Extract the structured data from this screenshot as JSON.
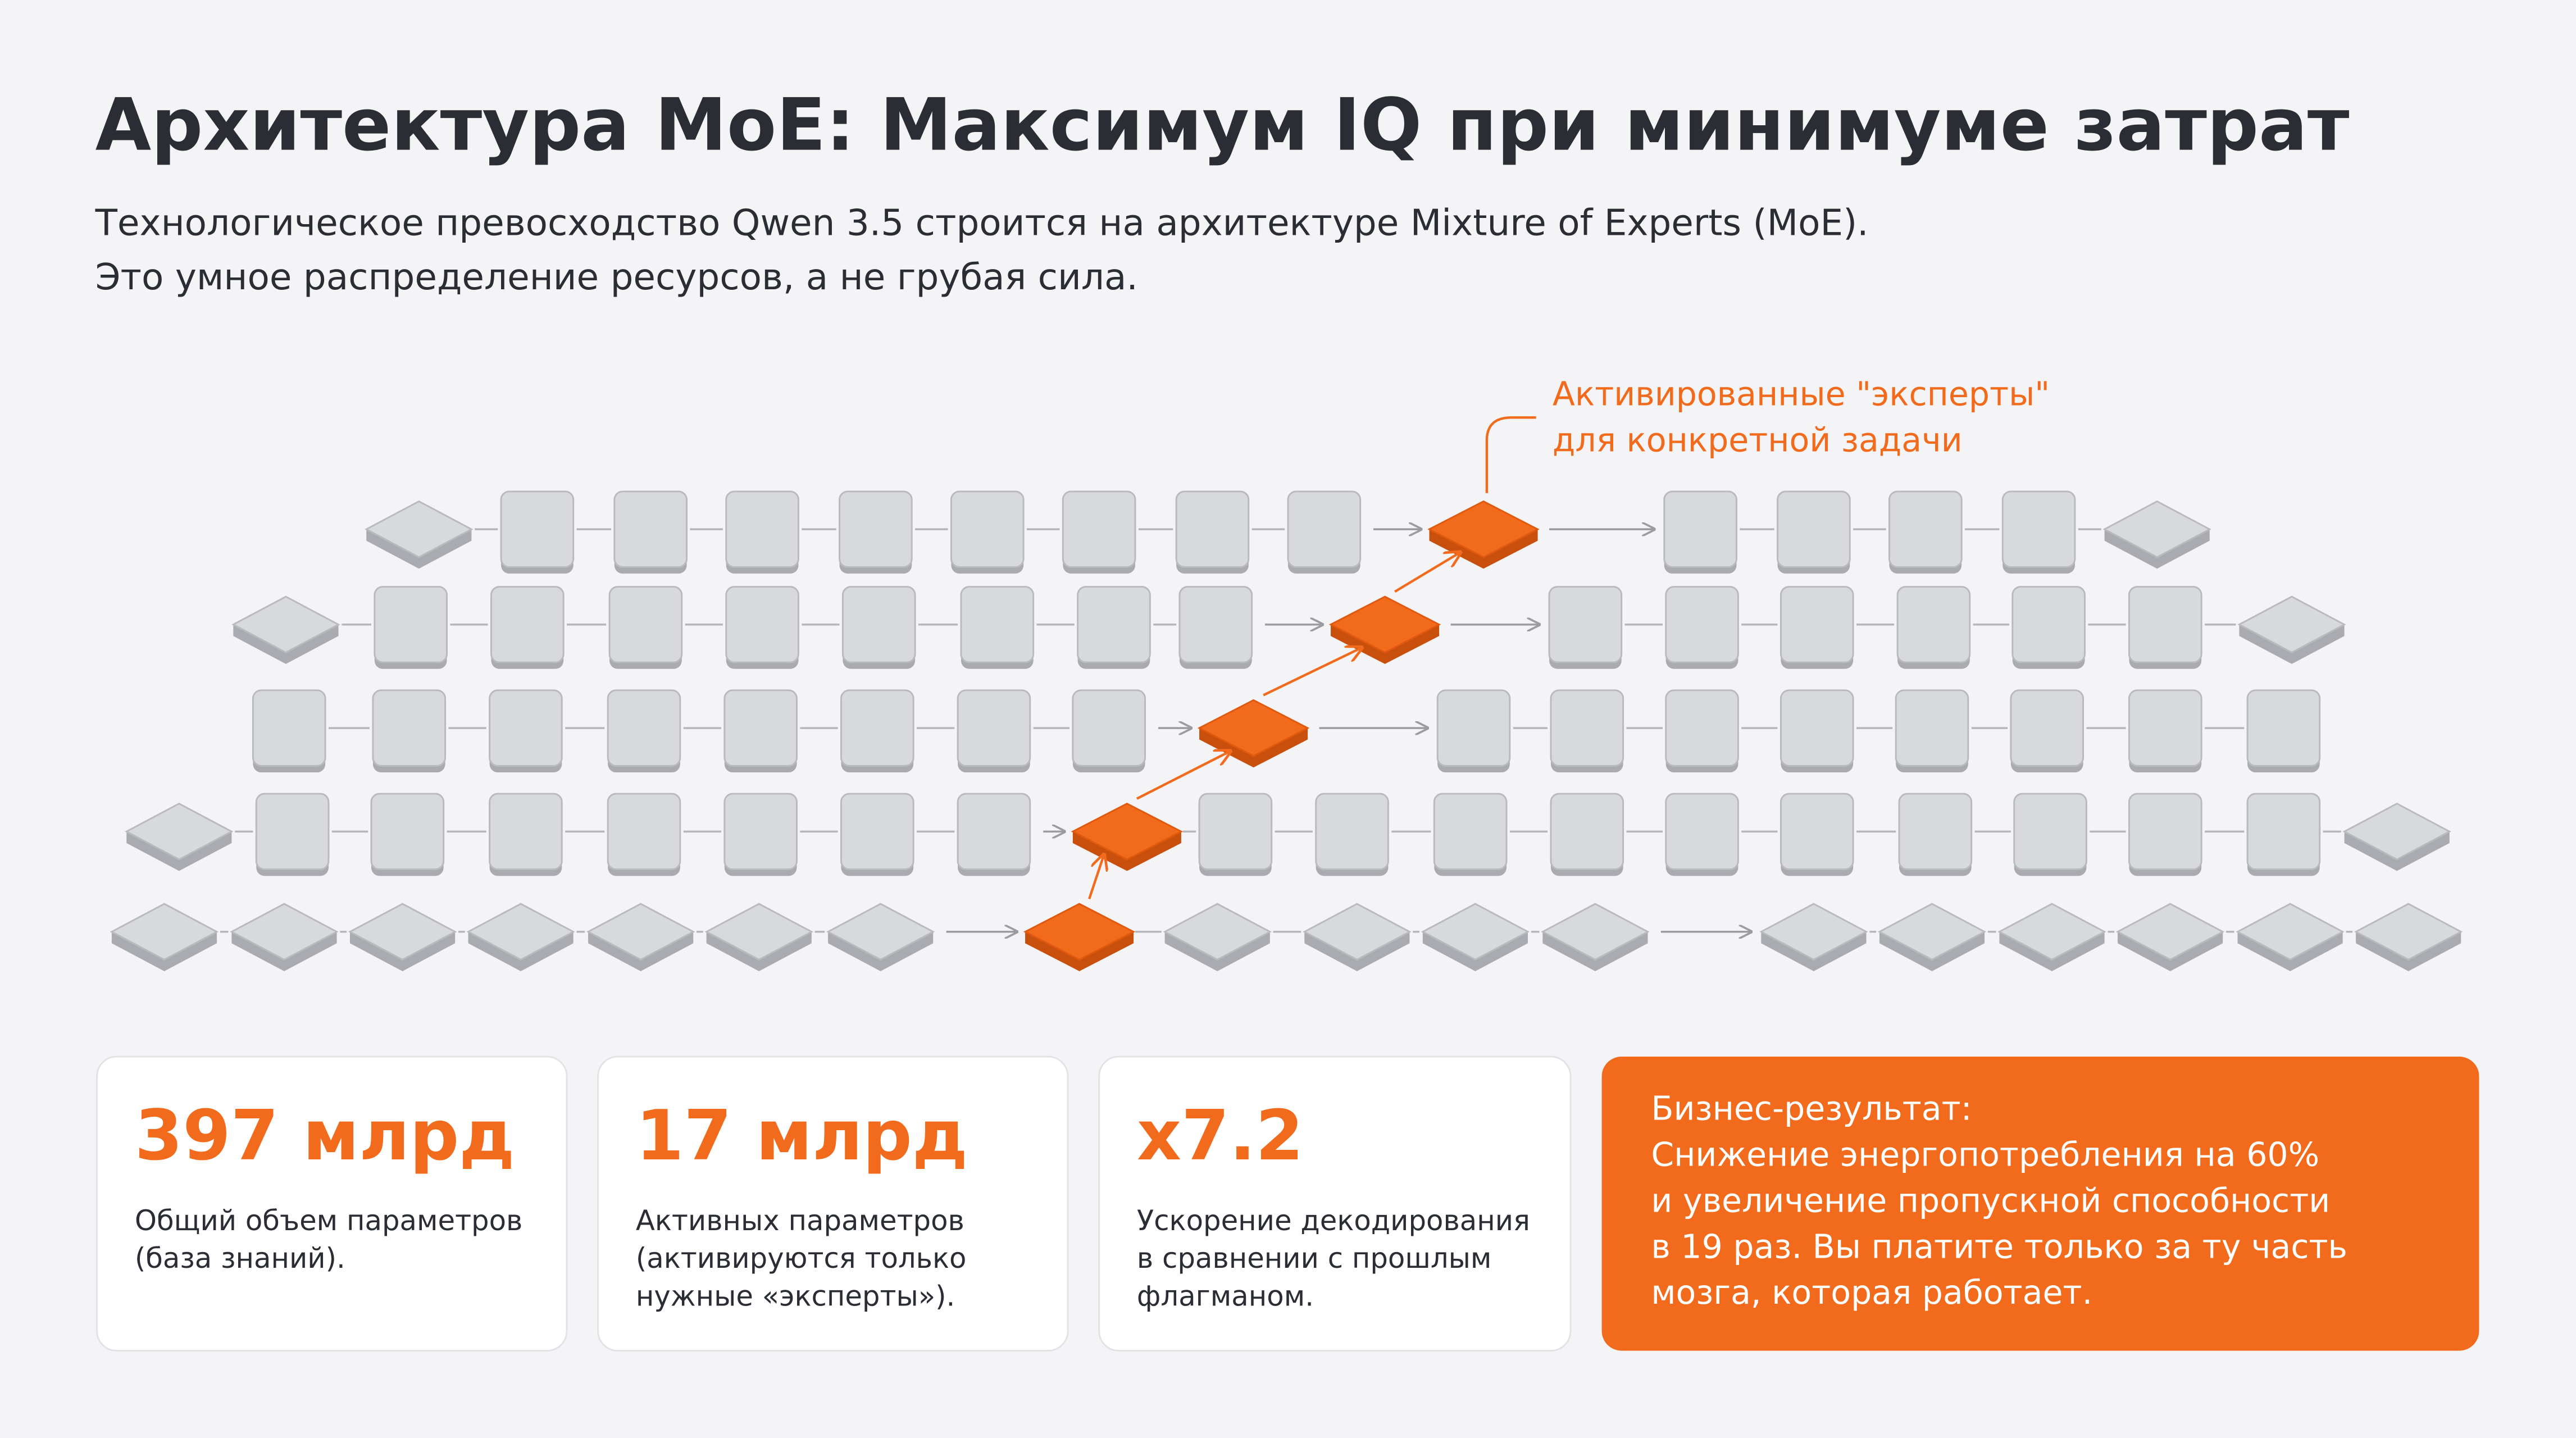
{
  "header": {
    "title": "Архитектура MoE: Максимум IQ при минимуме затрат",
    "subtitle": [
      "Технологическое превосходство Qwen 3.5 строится на архитектуре Mixture of Experts (MoE).",
      "Это умное распределение ресурсов, а не грубая сила."
    ]
  },
  "diagram": {
    "annotation": [
      "Активированные \"эксперты\"",
      "для конкретной задачи"
    ]
  },
  "cards": [
    {
      "value": "397 млрд",
      "description": [
        "Общий объем параметров",
        "(база знаний)."
      ]
    },
    {
      "value": "17 млрд",
      "description": [
        "Активных параметров",
        "(активируются только",
        "нужные «эксперты»)."
      ]
    },
    {
      "value": "x7.2",
      "description": [
        "Ускорение декодирования",
        "в сравнении с прошлым",
        "флагманом."
      ]
    }
  ],
  "highlight": {
    "title": "Бизнес-результат:",
    "text": [
      "Снижение энергопотребления на 60%",
      "и увеличение пропускной способности",
      "в 19 раз. Вы платите только за ту часть",
      "мозга, которая работает."
    ]
  }
}
